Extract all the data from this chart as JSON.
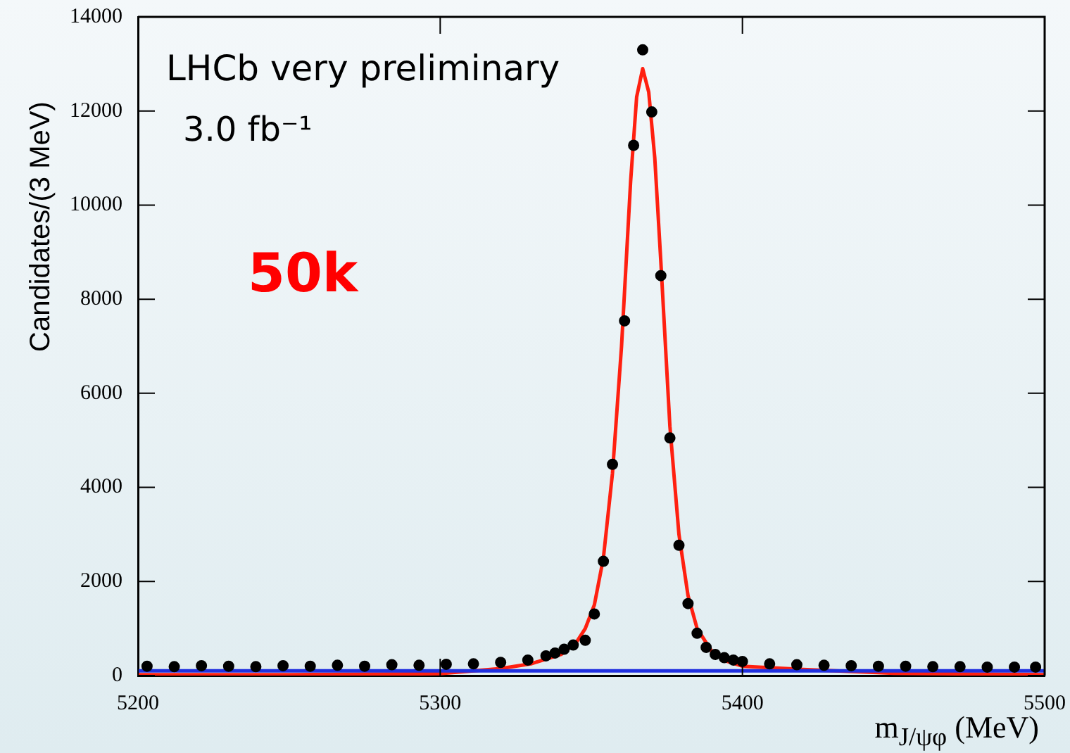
{
  "chart_data": {
    "type": "scatter",
    "xlabel": "m$_{J/ψφ}$ (MeV)",
    "ylabel": "Candidates/(3 MeV)",
    "annotations": [
      "LHCb very preliminary",
      "3.0 fb⁻¹",
      "50k"
    ],
    "xlim": [
      5200,
      5500
    ],
    "xticks": [
      5200,
      5300,
      5400,
      5500
    ],
    "ylim": [
      0,
      14000
    ],
    "yticks": [
      0,
      2000,
      4000,
      6000,
      8000,
      10000,
      12000,
      14000
    ],
    "grid": false,
    "legend": false,
    "series": [
      {
        "type": "line",
        "color": "#2030e0",
        "marker": "none",
        "x": [
          5200,
          5500
        ],
        "values": [
          100,
          100
        ]
      },
      {
        "type": "line",
        "color": "#ff2010",
        "marker": "none",
        "x": [
          5200,
          5250,
          5300,
          5320,
          5330,
          5340,
          5345,
          5348,
          5351,
          5354,
          5357,
          5360,
          5363,
          5365,
          5367,
          5369,
          5371,
          5373,
          5376,
          5379,
          5382,
          5385,
          5390,
          5395,
          5400,
          5420,
          5450,
          5500
        ],
        "values": [
          20,
          20,
          40,
          150,
          250,
          450,
          700,
          1000,
          1500,
          2500,
          4300,
          7000,
          10500,
          12300,
          12900,
          12400,
          11000,
          8800,
          5300,
          3000,
          1700,
          1000,
          500,
          300,
          200,
          130,
          50,
          20
        ]
      },
      {
        "color": "#000000",
        "marker": "circle",
        "x": [
          5203,
          5212,
          5221,
          5230,
          5239,
          5248,
          5257,
          5266,
          5275,
          5284,
          5293,
          5302,
          5311,
          5320,
          5329,
          5335,
          5338,
          5341,
          5344,
          5348,
          5351,
          5354,
          5357,
          5361,
          5364,
          5367,
          5370,
          5373,
          5376,
          5379,
          5382,
          5385,
          5388,
          5391,
          5394,
          5397,
          5400,
          5409,
          5418,
          5427,
          5436,
          5445,
          5454,
          5463,
          5472,
          5481,
          5490,
          5497
        ],
        "values": [
          200,
          190,
          210,
          200,
          190,
          210,
          200,
          220,
          200,
          230,
          220,
          240,
          250,
          280,
          330,
          420,
          480,
          560,
          650,
          750,
          1310,
          2430,
          4490,
          7540,
          11270,
          13300,
          11980,
          8500,
          5050,
          2770,
          1530,
          900,
          600,
          450,
          380,
          330,
          300,
          250,
          230,
          220,
          210,
          200,
          200,
          190,
          190,
          180,
          180,
          180
        ]
      }
    ]
  }
}
